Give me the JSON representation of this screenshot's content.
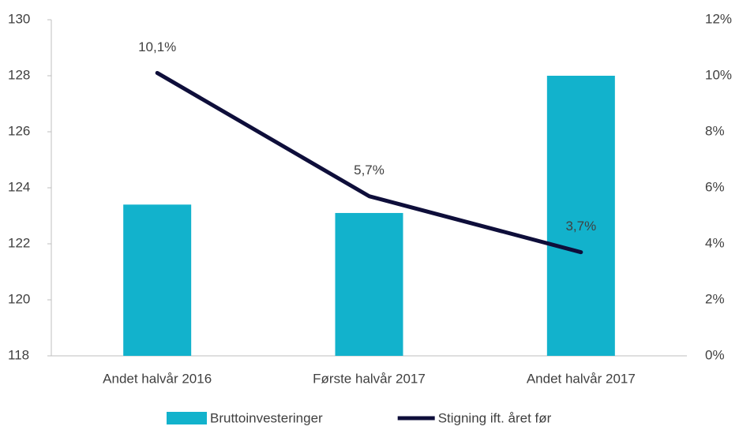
{
  "chart_data": {
    "type": "combo",
    "categories": [
      "Andet halvår 2016",
      "Første halvår 2017",
      "Andet halvår 2017"
    ],
    "series": [
      {
        "name": "Bruttoinvesteringer",
        "type": "bar",
        "color": "#12b2cc",
        "values": [
          123.4,
          123.1,
          128.0
        ]
      },
      {
        "name": "Stigning ift. året før",
        "type": "line",
        "axis": "y2",
        "color": "#0e0e3a",
        "values": [
          10.1,
          5.7,
          3.7
        ],
        "value_labels": [
          "10,1%",
          "5,7%",
          "3,7%"
        ]
      }
    ],
    "ylim": [
      118,
      130
    ],
    "yticks": [
      118,
      120,
      122,
      124,
      126,
      128,
      130
    ],
    "y2lim": [
      0,
      12
    ],
    "y2ticks": [
      {
        "value": 0,
        "label": "0%"
      },
      {
        "value": 2,
        "label": "2%"
      },
      {
        "value": 4,
        "label": "4%"
      },
      {
        "value": 6,
        "label": "6%"
      },
      {
        "value": 8,
        "label": "8%"
      },
      {
        "value": 10,
        "label": "10%"
      },
      {
        "value": 12,
        "label": "12%"
      }
    ],
    "legend": "bottom"
  }
}
